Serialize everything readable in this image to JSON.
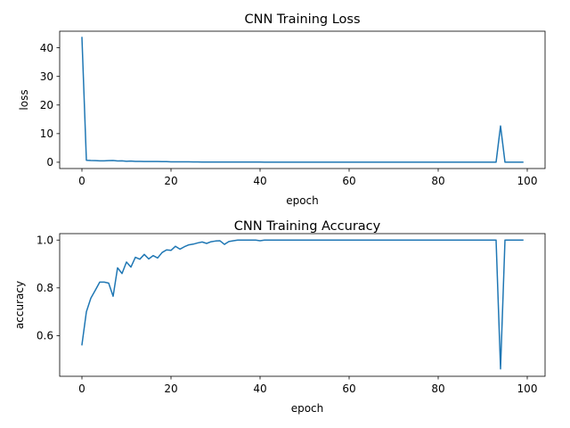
{
  "chart_data": [
    {
      "type": "line",
      "title": "CNN Training Loss",
      "xlabel": "epoch",
      "ylabel": "loss",
      "xlim": [
        -5,
        104
      ],
      "ylim": [
        -2.2,
        45.8
      ],
      "xticks": [
        0,
        20,
        40,
        60,
        80,
        100
      ],
      "yticks": [
        0,
        10,
        20,
        30,
        40
      ],
      "grid": false,
      "color": "#1f77b4",
      "series": [
        {
          "x": [
            0,
            1,
            2,
            3,
            4,
            5,
            6,
            7,
            8,
            9,
            10,
            11,
            12,
            13,
            14,
            15,
            16,
            17,
            18,
            19,
            20,
            21,
            22,
            23,
            24,
            25,
            26,
            27,
            28,
            29,
            30,
            31,
            32,
            33,
            34,
            35,
            36,
            37,
            38,
            39,
            40,
            41,
            42,
            43,
            44,
            45,
            46,
            47,
            48,
            49,
            50,
            51,
            52,
            53,
            54,
            55,
            56,
            57,
            58,
            59,
            60,
            61,
            62,
            63,
            64,
            65,
            66,
            67,
            68,
            69,
            70,
            71,
            72,
            73,
            74,
            75,
            76,
            77,
            78,
            79,
            80,
            81,
            82,
            83,
            84,
            85,
            86,
            87,
            88,
            89,
            90,
            91,
            92,
            93,
            94,
            95,
            96,
            97,
            98,
            99
          ],
          "values": [
            43.6,
            0.7,
            0.6,
            0.55,
            0.5,
            0.5,
            0.55,
            0.6,
            0.45,
            0.5,
            0.35,
            0.4,
            0.3,
            0.3,
            0.25,
            0.25,
            0.25,
            0.25,
            0.2,
            0.2,
            0.15,
            0.15,
            0.15,
            0.12,
            0.12,
            0.1,
            0.1,
            0.08,
            0.08,
            0.07,
            0.07,
            0.07,
            0.08,
            0.06,
            0.05,
            0.05,
            0.05,
            0.04,
            0.04,
            0.04,
            0.04,
            0.03,
            0.03,
            0.03,
            0.03,
            0.03,
            0.03,
            0.03,
            0.03,
            0.03,
            0.03,
            0.03,
            0.03,
            0.03,
            0.03,
            0.03,
            0.03,
            0.03,
            0.03,
            0.03,
            0.03,
            0.03,
            0.03,
            0.03,
            0.03,
            0.03,
            0.03,
            0.03,
            0.03,
            0.03,
            0.03,
            0.03,
            0.03,
            0.03,
            0.03,
            0.03,
            0.03,
            0.03,
            0.03,
            0.03,
            0.03,
            0.03,
            0.03,
            0.03,
            0.03,
            0.03,
            0.03,
            0.03,
            0.03,
            0.03,
            0.03,
            0.03,
            0.03,
            0.03,
            12.7,
            0.03,
            0.03,
            0.03,
            0.03,
            0.03
          ]
        }
      ]
    },
    {
      "type": "line",
      "title": "CNN Training Accuracy",
      "xlabel": "epoch",
      "ylabel": "accuracy",
      "xlim": [
        -5,
        104
      ],
      "ylim": [
        0.43,
        1.027
      ],
      "xticks": [
        0,
        20,
        40,
        60,
        80,
        100
      ],
      "yticks": [
        0.6,
        0.8,
        1.0
      ],
      "ytick_labels": [
        "0.6",
        "0.8",
        "1.0"
      ],
      "grid": false,
      "color": "#1f77b4",
      "series": [
        {
          "x": [
            0,
            1,
            2,
            3,
            4,
            5,
            6,
            7,
            8,
            9,
            10,
            11,
            12,
            13,
            14,
            15,
            16,
            17,
            18,
            19,
            20,
            21,
            22,
            23,
            24,
            25,
            26,
            27,
            28,
            29,
            30,
            31,
            32,
            33,
            34,
            35,
            36,
            37,
            38,
            39,
            40,
            41,
            42,
            43,
            44,
            45,
            46,
            47,
            48,
            49,
            50,
            51,
            52,
            53,
            54,
            55,
            56,
            57,
            58,
            59,
            60,
            61,
            62,
            63,
            64,
            65,
            66,
            67,
            68,
            69,
            70,
            71,
            72,
            73,
            74,
            75,
            76,
            77,
            78,
            79,
            80,
            81,
            82,
            83,
            84,
            85,
            86,
            87,
            88,
            89,
            90,
            91,
            92,
            93,
            94,
            95,
            96,
            97,
            98,
            99
          ],
          "values": [
            0.562,
            0.7,
            0.757,
            0.79,
            0.824,
            0.824,
            0.82,
            0.765,
            0.884,
            0.86,
            0.908,
            0.887,
            0.928,
            0.92,
            0.94,
            0.921,
            0.935,
            0.925,
            0.948,
            0.959,
            0.957,
            0.974,
            0.962,
            0.972,
            0.98,
            0.983,
            0.988,
            0.992,
            0.986,
            0.993,
            0.996,
            0.997,
            0.982,
            0.994,
            0.997,
            1.0,
            1.0,
            1.0,
            1.0,
            1.0,
            0.997,
            1.0,
            1.0,
            1.0,
            1.0,
            1.0,
            1.0,
            1.0,
            1.0,
            1.0,
            1.0,
            1.0,
            1.0,
            1.0,
            1.0,
            1.0,
            1.0,
            1.0,
            1.0,
            1.0,
            1.0,
            1.0,
            1.0,
            1.0,
            1.0,
            1.0,
            1.0,
            1.0,
            1.0,
            1.0,
            1.0,
            1.0,
            1.0,
            1.0,
            1.0,
            1.0,
            1.0,
            1.0,
            1.0,
            1.0,
            1.0,
            1.0,
            1.0,
            1.0,
            1.0,
            1.0,
            1.0,
            1.0,
            1.0,
            1.0,
            1.0,
            1.0,
            1.0,
            1.0,
            0.461,
            1.0,
            1.0,
            1.0,
            1.0,
            1.0
          ]
        }
      ]
    }
  ]
}
